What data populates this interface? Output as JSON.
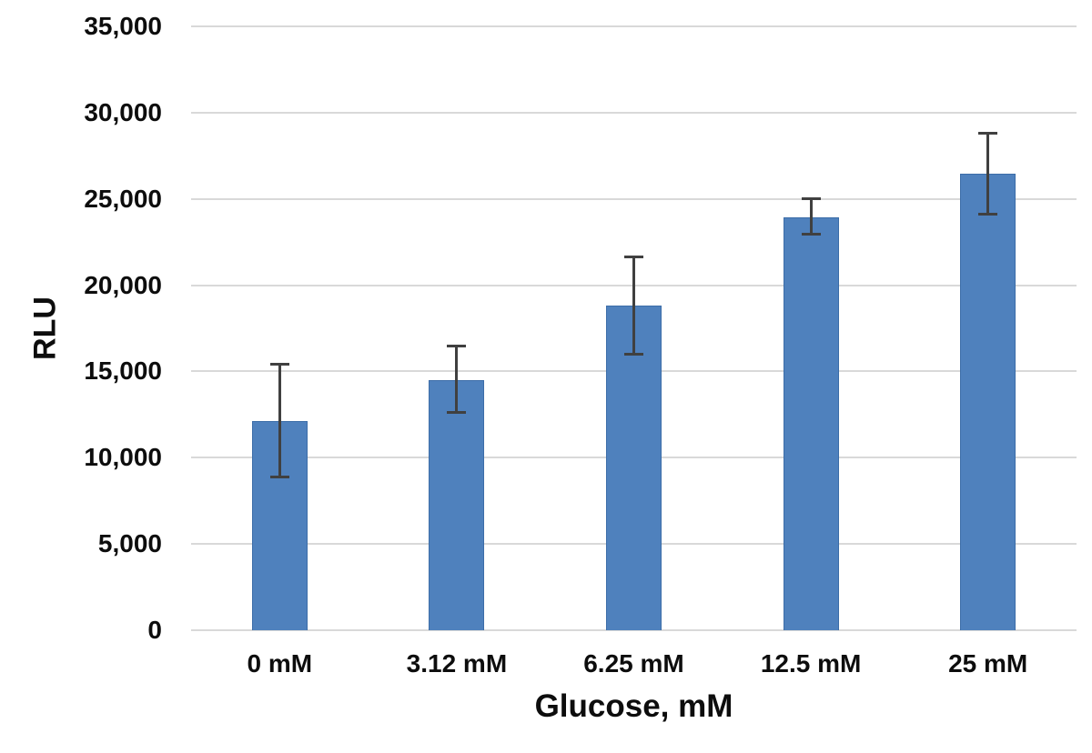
{
  "chart_data": {
    "type": "bar",
    "title": "",
    "xlabel": "Glucose, mM",
    "ylabel": "RLU",
    "categories": [
      "0 mM",
      "3.12 mM",
      "6.25 mM",
      "12.5 mM",
      "25 mM"
    ],
    "series": [
      {
        "name": "RLU",
        "values": [
          12100,
          14500,
          18800,
          23950,
          26450
        ],
        "error_plus": [
          3300,
          1950,
          2850,
          1050,
          2350
        ],
        "error_minus": [
          3200,
          1900,
          2800,
          1000,
          2350
        ]
      }
    ],
    "ylim": [
      0,
      35000
    ],
    "ytick_step": 5000,
    "ytick_labels": [
      "0",
      "5,000",
      "10,000",
      "15,000",
      "20,000",
      "25,000",
      "30,000",
      "35,000"
    ],
    "grid": true,
    "legend": "none",
    "colors": {
      "bar_fill": "#4F81BD",
      "bar_border": "#3C6DA8",
      "error_bar": "#404040",
      "gridline": "#D9D9D9",
      "axis_line": "#D9D9D9",
      "text": "#0D0D0D"
    }
  }
}
